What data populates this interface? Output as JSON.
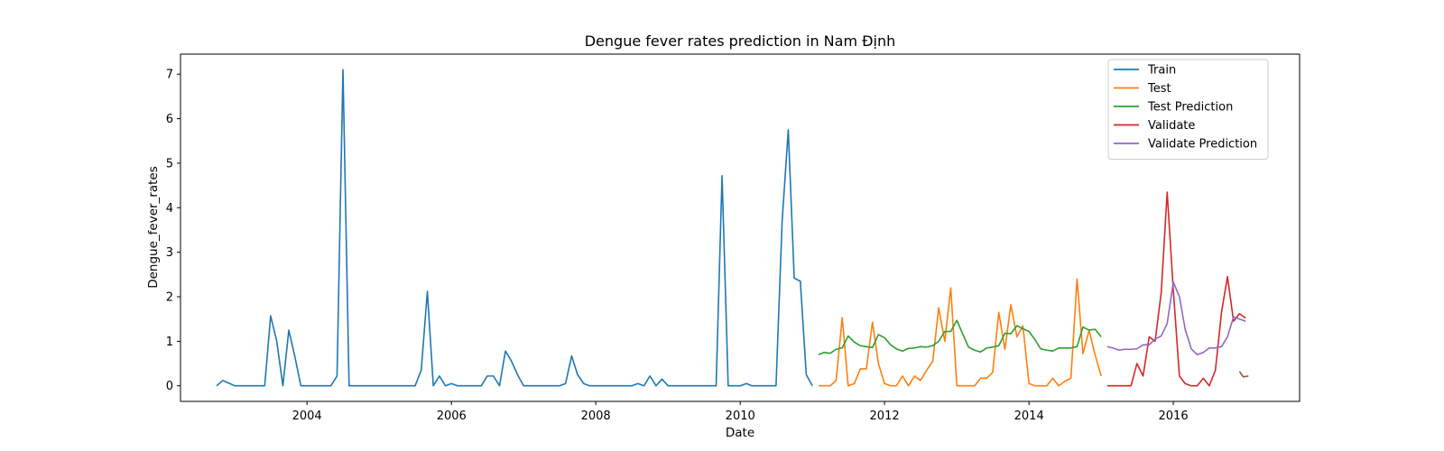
{
  "chart_data": {
    "type": "line",
    "title": "Dengue fever rates prediction in Nam Định",
    "xlabel": "Date",
    "ylabel": "Dengue_fever_rates",
    "xlim": [
      "2002-04-01",
      "2017-10-01"
    ],
    "ylim": [
      -0.35,
      7.45
    ],
    "x_ticks": [
      {
        "date": "2004-01-01",
        "label": "2004"
      },
      {
        "date": "2006-01-01",
        "label": "2006"
      },
      {
        "date": "2008-01-01",
        "label": "2008"
      },
      {
        "date": "2010-01-01",
        "label": "2010"
      },
      {
        "date": "2012-01-01",
        "label": "2012"
      },
      {
        "date": "2014-01-01",
        "label": "2014"
      },
      {
        "date": "2016-01-01",
        "label": "2016"
      }
    ],
    "y_ticks": [
      0,
      1,
      2,
      3,
      4,
      5,
      6,
      7
    ],
    "grid": false,
    "legend_position": "top-right",
    "series": [
      {
        "name": "Train",
        "color": "#1f77b4",
        "points": [
          [
            "2002-10-01",
            0
          ],
          [
            "2002-11-01",
            0.12
          ],
          [
            "2002-12-01",
            0.06
          ],
          [
            "2003-01-01",
            0
          ],
          [
            "2003-02-01",
            0
          ],
          [
            "2003-03-01",
            0
          ],
          [
            "2003-04-01",
            0
          ],
          [
            "2003-05-01",
            0
          ],
          [
            "2003-06-01",
            0
          ],
          [
            "2003-07-01",
            1.57
          ],
          [
            "2003-08-01",
            1.0
          ],
          [
            "2003-09-01",
            0
          ],
          [
            "2003-10-01",
            1.25
          ],
          [
            "2003-11-01",
            0.65
          ],
          [
            "2003-12-01",
            0
          ],
          [
            "2004-01-01",
            0
          ],
          [
            "2004-02-01",
            0
          ],
          [
            "2004-03-01",
            0
          ],
          [
            "2004-04-01",
            0
          ],
          [
            "2004-05-01",
            0
          ],
          [
            "2004-06-01",
            0.22
          ],
          [
            "2004-07-01",
            7.1
          ],
          [
            "2004-08-01",
            0
          ],
          [
            "2004-09-01",
            0
          ],
          [
            "2004-10-01",
            0
          ],
          [
            "2004-11-01",
            0
          ],
          [
            "2004-12-01",
            0
          ],
          [
            "2005-01-01",
            0
          ],
          [
            "2005-02-01",
            0
          ],
          [
            "2005-03-01",
            0
          ],
          [
            "2005-04-01",
            0
          ],
          [
            "2005-05-01",
            0
          ],
          [
            "2005-06-01",
            0
          ],
          [
            "2005-07-01",
            0
          ],
          [
            "2005-08-01",
            0.35
          ],
          [
            "2005-09-01",
            2.12
          ],
          [
            "2005-10-01",
            0
          ],
          [
            "2005-11-01",
            0.22
          ],
          [
            "2005-12-01",
            0
          ],
          [
            "2006-01-01",
            0.05
          ],
          [
            "2006-02-01",
            0
          ],
          [
            "2006-03-01",
            0
          ],
          [
            "2006-04-01",
            0
          ],
          [
            "2006-05-01",
            0
          ],
          [
            "2006-06-01",
            0
          ],
          [
            "2006-07-01",
            0.22
          ],
          [
            "2006-08-01",
            0.22
          ],
          [
            "2006-09-01",
            0
          ],
          [
            "2006-10-01",
            0.78
          ],
          [
            "2006-11-01",
            0.55
          ],
          [
            "2006-12-01",
            0.25
          ],
          [
            "2007-01-01",
            0
          ],
          [
            "2007-02-01",
            0
          ],
          [
            "2007-03-01",
            0
          ],
          [
            "2007-04-01",
            0
          ],
          [
            "2007-05-01",
            0
          ],
          [
            "2007-06-01",
            0
          ],
          [
            "2007-07-01",
            0
          ],
          [
            "2007-08-01",
            0.05
          ],
          [
            "2007-09-01",
            0.67
          ],
          [
            "2007-10-01",
            0.25
          ],
          [
            "2007-11-01",
            0.05
          ],
          [
            "2007-12-01",
            0
          ],
          [
            "2008-01-01",
            0
          ],
          [
            "2008-02-01",
            0
          ],
          [
            "2008-03-01",
            0
          ],
          [
            "2008-04-01",
            0
          ],
          [
            "2008-05-01",
            0
          ],
          [
            "2008-06-01",
            0
          ],
          [
            "2008-07-01",
            0
          ],
          [
            "2008-08-01",
            0.05
          ],
          [
            "2008-09-01",
            0
          ],
          [
            "2008-10-01",
            0.22
          ],
          [
            "2008-11-01",
            0
          ],
          [
            "2008-12-01",
            0.15
          ],
          [
            "2009-01-01",
            0
          ],
          [
            "2009-02-01",
            0
          ],
          [
            "2009-03-01",
            0
          ],
          [
            "2009-04-01",
            0
          ],
          [
            "2009-05-01",
            0
          ],
          [
            "2009-06-01",
            0
          ],
          [
            "2009-07-01",
            0
          ],
          [
            "2009-08-01",
            0
          ],
          [
            "2009-09-01",
            0
          ],
          [
            "2009-10-01",
            4.72
          ],
          [
            "2009-11-01",
            0
          ],
          [
            "2009-12-01",
            0
          ],
          [
            "2010-01-01",
            0
          ],
          [
            "2010-02-01",
            0.05
          ],
          [
            "2010-03-01",
            0
          ],
          [
            "2010-04-01",
            0
          ],
          [
            "2010-05-01",
            0
          ],
          [
            "2010-06-01",
            0
          ],
          [
            "2010-07-01",
            0
          ],
          [
            "2010-08-01",
            3.7
          ],
          [
            "2010-09-01",
            5.75
          ],
          [
            "2010-10-01",
            2.42
          ],
          [
            "2010-11-01",
            2.35
          ],
          [
            "2010-12-01",
            0.25
          ],
          [
            "2011-01-01",
            0
          ]
        ]
      },
      {
        "name": "Test",
        "color": "#ff7f0e",
        "points": [
          [
            "2011-02-01",
            0
          ],
          [
            "2011-03-01",
            0
          ],
          [
            "2011-04-01",
            0
          ],
          [
            "2011-05-01",
            0.12
          ],
          [
            "2011-06-01",
            1.53
          ],
          [
            "2011-07-01",
            0
          ],
          [
            "2011-08-01",
            0.05
          ],
          [
            "2011-09-01",
            0.38
          ],
          [
            "2011-10-01",
            0.38
          ],
          [
            "2011-11-01",
            1.43
          ],
          [
            "2011-12-01",
            0.5
          ],
          [
            "2012-01-01",
            0.05
          ],
          [
            "2012-02-01",
            0
          ],
          [
            "2012-03-01",
            0
          ],
          [
            "2012-04-01",
            0.22
          ],
          [
            "2012-05-01",
            0
          ],
          [
            "2012-06-01",
            0.22
          ],
          [
            "2012-07-01",
            0.12
          ],
          [
            "2012-08-01",
            0.35
          ],
          [
            "2012-09-01",
            0.55
          ],
          [
            "2012-10-01",
            1.75
          ],
          [
            "2012-11-01",
            1.0
          ],
          [
            "2012-12-01",
            2.2
          ],
          [
            "2013-01-01",
            0
          ],
          [
            "2013-02-01",
            0
          ],
          [
            "2013-03-01",
            0
          ],
          [
            "2013-04-01",
            0
          ],
          [
            "2013-05-01",
            0.17
          ],
          [
            "2013-06-01",
            0.17
          ],
          [
            "2013-07-01",
            0.3
          ],
          [
            "2013-08-01",
            1.65
          ],
          [
            "2013-09-01",
            0.82
          ],
          [
            "2013-10-01",
            1.82
          ],
          [
            "2013-11-01",
            1.1
          ],
          [
            "2013-12-01",
            1.35
          ],
          [
            "2014-01-01",
            0.05
          ],
          [
            "2014-02-01",
            0
          ],
          [
            "2014-03-01",
            0
          ],
          [
            "2014-04-01",
            0
          ],
          [
            "2014-05-01",
            0.17
          ],
          [
            "2014-06-01",
            0
          ],
          [
            "2014-07-01",
            0.1
          ],
          [
            "2014-08-01",
            0.17
          ],
          [
            "2014-09-01",
            2.4
          ],
          [
            "2014-10-01",
            0.72
          ],
          [
            "2014-11-01",
            1.25
          ],
          [
            "2014-12-01",
            0.7
          ],
          [
            "2015-01-01",
            0.22
          ]
        ]
      },
      {
        "name": "Test Prediction",
        "color": "#2ca02c",
        "points": [
          [
            "2011-02-01",
            0.7
          ],
          [
            "2011-03-01",
            0.75
          ],
          [
            "2011-04-01",
            0.73
          ],
          [
            "2011-05-01",
            0.82
          ],
          [
            "2011-06-01",
            0.85
          ],
          [
            "2011-07-01",
            1.12
          ],
          [
            "2011-08-01",
            0.98
          ],
          [
            "2011-09-01",
            0.9
          ],
          [
            "2011-10-01",
            0.88
          ],
          [
            "2011-11-01",
            0.86
          ],
          [
            "2011-12-01",
            1.15
          ],
          [
            "2012-01-01",
            1.08
          ],
          [
            "2012-02-01",
            0.92
          ],
          [
            "2012-03-01",
            0.83
          ],
          [
            "2012-04-01",
            0.78
          ],
          [
            "2012-05-01",
            0.84
          ],
          [
            "2012-06-01",
            0.85
          ],
          [
            "2012-07-01",
            0.88
          ],
          [
            "2012-08-01",
            0.87
          ],
          [
            "2012-09-01",
            0.9
          ],
          [
            "2012-10-01",
            1.0
          ],
          [
            "2012-11-01",
            1.22
          ],
          [
            "2012-12-01",
            1.22
          ],
          [
            "2013-01-01",
            1.47
          ],
          [
            "2013-02-01",
            1.15
          ],
          [
            "2013-03-01",
            0.87
          ],
          [
            "2013-04-01",
            0.8
          ],
          [
            "2013-05-01",
            0.76
          ],
          [
            "2013-06-01",
            0.85
          ],
          [
            "2013-07-01",
            0.87
          ],
          [
            "2013-08-01",
            0.9
          ],
          [
            "2013-09-01",
            1.18
          ],
          [
            "2013-10-01",
            1.17
          ],
          [
            "2013-11-01",
            1.35
          ],
          [
            "2013-12-01",
            1.28
          ],
          [
            "2014-01-01",
            1.22
          ],
          [
            "2014-02-01",
            1.03
          ],
          [
            "2014-03-01",
            0.83
          ],
          [
            "2014-04-01",
            0.8
          ],
          [
            "2014-05-01",
            0.78
          ],
          [
            "2014-06-01",
            0.85
          ],
          [
            "2014-07-01",
            0.85
          ],
          [
            "2014-08-01",
            0.85
          ],
          [
            "2014-09-01",
            0.88
          ],
          [
            "2014-10-01",
            1.32
          ],
          [
            "2014-11-01",
            1.25
          ],
          [
            "2014-12-01",
            1.27
          ],
          [
            "2015-01-01",
            1.1
          ]
        ]
      },
      {
        "name": "Validate",
        "color": "#d62728",
        "points": [
          [
            "2015-02-01",
            0
          ],
          [
            "2015-03-01",
            0
          ],
          [
            "2015-04-01",
            0
          ],
          [
            "2015-05-01",
            0
          ],
          [
            "2015-06-01",
            0
          ],
          [
            "2015-07-01",
            0.5
          ],
          [
            "2015-08-01",
            0.22
          ],
          [
            "2015-09-01",
            1.1
          ],
          [
            "2015-10-01",
            1.0
          ],
          [
            "2015-11-01",
            2.1
          ],
          [
            "2015-12-01",
            4.35
          ],
          [
            "2016-01-01",
            2.15
          ],
          [
            "2016-02-01",
            0.22
          ],
          [
            "2016-03-01",
            0.05
          ],
          [
            "2016-04-01",
            0
          ],
          [
            "2016-05-01",
            0
          ],
          [
            "2016-06-01",
            0.17
          ],
          [
            "2016-07-01",
            0
          ],
          [
            "2016-08-01",
            0.35
          ],
          [
            "2016-09-01",
            1.65
          ],
          [
            "2016-10-01",
            2.45
          ],
          [
            "2016-11-01",
            1.45
          ],
          [
            "2016-12-01",
            1.62
          ],
          [
            "2017-01-01",
            1.52
          ]
        ]
      },
      {
        "name": "Validate Prediction",
        "color": "#9467bd",
        "points": [
          [
            "2015-02-01",
            0.88
          ],
          [
            "2015-03-01",
            0.85
          ],
          [
            "2015-04-01",
            0.8
          ],
          [
            "2015-05-01",
            0.82
          ],
          [
            "2015-06-01",
            0.82
          ],
          [
            "2015-07-01",
            0.83
          ],
          [
            "2015-08-01",
            0.92
          ],
          [
            "2015-09-01",
            0.92
          ],
          [
            "2015-10-01",
            1.05
          ],
          [
            "2015-11-01",
            1.12
          ],
          [
            "2015-12-01",
            1.4
          ],
          [
            "2016-01-01",
            2.33
          ],
          [
            "2016-02-01",
            2.0
          ],
          [
            "2016-03-01",
            1.27
          ],
          [
            "2016-04-01",
            0.83
          ],
          [
            "2016-05-01",
            0.7
          ],
          [
            "2016-06-01",
            0.75
          ],
          [
            "2016-07-01",
            0.85
          ],
          [
            "2016-08-01",
            0.85
          ],
          [
            "2016-09-01",
            0.88
          ],
          [
            "2016-10-01",
            1.1
          ],
          [
            "2016-11-01",
            1.55
          ],
          [
            "2016-12-01",
            1.5
          ],
          [
            "2017-01-01",
            1.45
          ]
        ]
      },
      {
        "color": "#8c564b",
        "points": [
          [
            "2016-12-01",
            0.32
          ],
          [
            "2016-12-20",
            0.2
          ],
          [
            "2017-01-15",
            0.22
          ]
        ]
      }
    ]
  }
}
